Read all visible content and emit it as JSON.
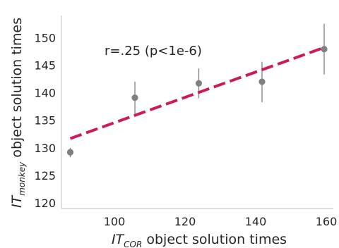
{
  "chart_data": {
    "type": "scatter",
    "title": "",
    "xlabel": {
      "main": "IT",
      "subscript": "COR",
      "suffix": " object solution times"
    },
    "ylabel": {
      "main": "IT",
      "subscript": "monkey",
      "suffix": " object solution times"
    },
    "xlim": [
      85,
      162
    ],
    "ylim": [
      119,
      154
    ],
    "xticks": [
      {
        "value": 100,
        "label": "100"
      },
      {
        "value": 120,
        "label": "120"
      },
      {
        "value": 140,
        "label": "140"
      },
      {
        "value": 160,
        "label": "160"
      }
    ],
    "yticks": [
      {
        "value": 120,
        "label": "120"
      },
      {
        "value": 125,
        "label": "125"
      },
      {
        "value": 130,
        "label": "130"
      },
      {
        "value": 135,
        "label": "135"
      },
      {
        "value": 140,
        "label": "140"
      },
      {
        "value": 145,
        "label": "145"
      },
      {
        "value": 150,
        "label": "150"
      }
    ],
    "points": [
      {
        "x": 87.5,
        "y": 129.2,
        "err_low": 128.3,
        "err_high": 130.0
      },
      {
        "x": 105.8,
        "y": 139.1,
        "err_low": 136.2,
        "err_high": 142.0
      },
      {
        "x": 123.9,
        "y": 141.7,
        "err_low": 139.0,
        "err_high": 144.4
      },
      {
        "x": 141.8,
        "y": 142.0,
        "err_low": 138.3,
        "err_high": 145.6
      },
      {
        "x": 159.4,
        "y": 147.9,
        "err_low": 143.3,
        "err_high": 152.5
      }
    ],
    "fit_line": {
      "x1": 87.5,
      "y1": 131.7,
      "x2": 159.4,
      "y2": 148.2
    },
    "annotation": "r=.25 (p<1e-6)",
    "grid": false,
    "colors": {
      "points": "#808080",
      "fit_line": "#cc1a5c",
      "axes": "#cccccc",
      "text": "#262626"
    }
  }
}
